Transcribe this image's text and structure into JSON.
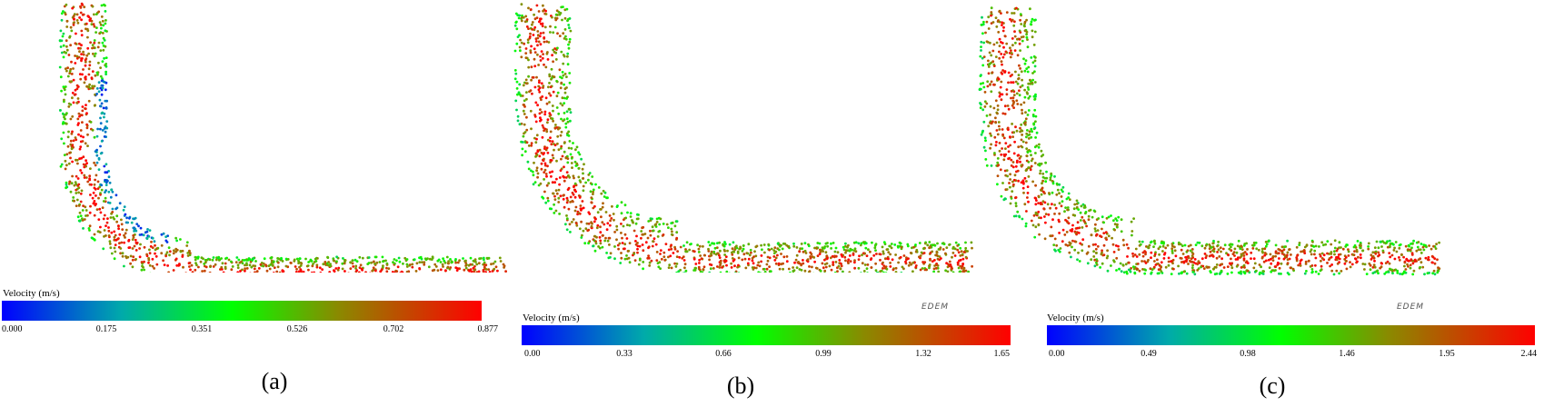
{
  "figure": {
    "panels": [
      {
        "caption": "(a)",
        "colorbar": {
          "title": "Velocity (m/s)",
          "ticks": [
            "0.000",
            "0.175",
            "0.351",
            "0.526",
            "0.702",
            "0.877"
          ],
          "min": 0.0,
          "max": 0.877
        },
        "logo": "",
        "color_scale": [
          "#0000ff",
          "#00aaaa",
          "#00ff00",
          "#8a8a00",
          "#ff0000"
        ]
      },
      {
        "caption": "(b)",
        "colorbar": {
          "title": "Velocity (m/s)",
          "ticks": [
            "0.00",
            "0.33",
            "0.66",
            "0.99",
            "1.32",
            "1.65"
          ],
          "min": 0.0,
          "max": 1.65
        },
        "logo": "EDEM",
        "color_scale": [
          "#0000ff",
          "#00aaaa",
          "#00ff00",
          "#8a8a00",
          "#ff0000"
        ]
      },
      {
        "caption": "(c)",
        "colorbar": {
          "title": "Velocity (m/s)",
          "ticks": [
            "0.00",
            "0.49",
            "0.98",
            "1.46",
            "1.95",
            "2.44"
          ],
          "min": 0.0,
          "max": 2.44
        },
        "logo": "EDEM",
        "color_scale": [
          "#0000ff",
          "#00aaaa",
          "#00ff00",
          "#8a8a00",
          "#ff0000"
        ]
      }
    ]
  }
}
